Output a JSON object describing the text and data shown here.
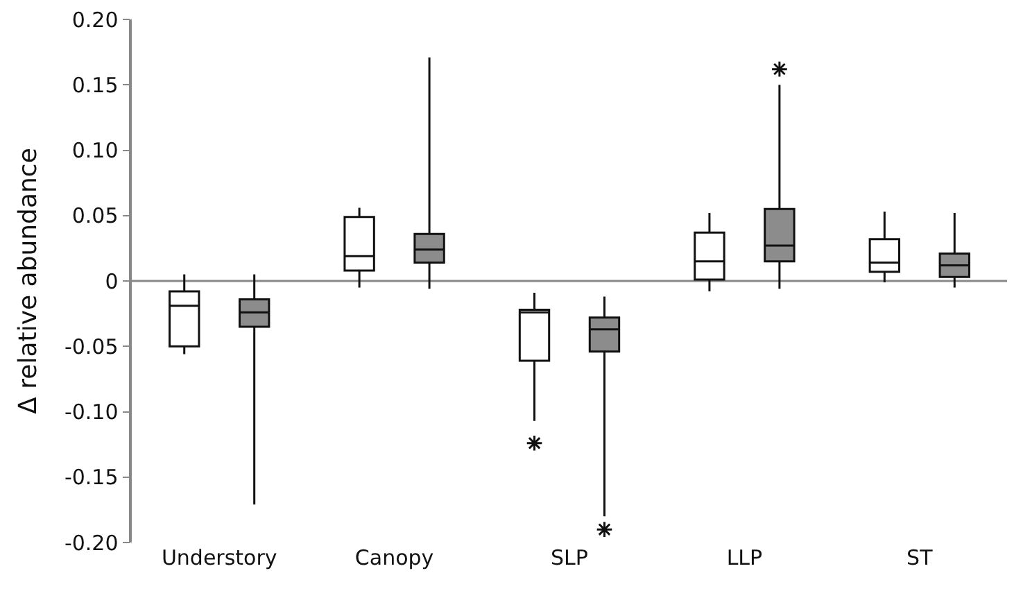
{
  "chart_data": {
    "type": "box",
    "ylabel": "Δ relative abundance",
    "categories": [
      "Understory",
      "Canopy",
      "SLP",
      "LLP",
      "ST"
    ],
    "series": [
      {
        "color": "#ffffff",
        "boxes": [
          {
            "low": -0.056,
            "q1": -0.05,
            "median": -0.019,
            "q3": -0.008,
            "high": 0.005
          },
          {
            "low": -0.005,
            "q1": 0.008,
            "median": 0.019,
            "q3": 0.049,
            "high": 0.056
          },
          {
            "low": -0.107,
            "q1": -0.061,
            "median": -0.024,
            "q3": -0.022,
            "high": -0.009,
            "outliers": [
              -0.124
            ]
          },
          {
            "low": -0.008,
            "q1": 0.001,
            "median": 0.015,
            "q3": 0.037,
            "high": 0.052
          },
          {
            "low": -0.001,
            "q1": 0.007,
            "median": 0.014,
            "q3": 0.032,
            "high": 0.053
          }
        ]
      },
      {
        "color": "#8c8c8c",
        "boxes": [
          {
            "low": -0.171,
            "q1": -0.035,
            "median": -0.024,
            "q3": -0.014,
            "high": 0.005
          },
          {
            "low": -0.006,
            "q1": 0.014,
            "median": 0.024,
            "q3": 0.036,
            "high": 0.171
          },
          {
            "low": -0.18,
            "q1": -0.054,
            "median": -0.037,
            "q3": -0.028,
            "high": -0.012,
            "outliers": [
              -0.19
            ]
          },
          {
            "low": -0.006,
            "q1": 0.015,
            "median": 0.027,
            "q3": 0.055,
            "high": 0.15,
            "outliers": [
              0.162
            ]
          },
          {
            "low": -0.005,
            "q1": 0.003,
            "median": 0.012,
            "q3": 0.021,
            "high": 0.052
          }
        ]
      }
    ],
    "marker": "star",
    "ref_lines": [
      {
        "axis": "y",
        "value": 0,
        "color": "#888888"
      }
    ],
    "ylim": [
      -0.2,
      0.2
    ],
    "yticks": [
      {
        "value": -0.2,
        "label": "-0.20"
      },
      {
        "value": -0.15,
        "label": "-0.15"
      },
      {
        "value": -0.1,
        "label": "-0.10"
      },
      {
        "value": -0.05,
        "label": "-0.05"
      },
      0,
      {
        "value": 0.05,
        "label": "0.05"
      },
      {
        "value": 0.1,
        "label": "0.10"
      },
      {
        "value": 0.15,
        "label": "0.15"
      },
      {
        "value": 0.2,
        "label": "0.20"
      }
    ],
    "grid": false
  }
}
